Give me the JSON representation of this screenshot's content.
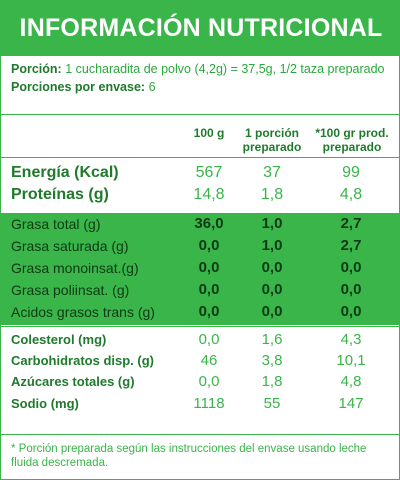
{
  "title": "INFORMACIÓN NUTRICIONAL",
  "serving": {
    "portion_label": "Porción:",
    "portion_value": "1 cucharadita de polvo (4,2g) = 37,5g, 1/2 taza preparado",
    "servings_label": "Porciones por envase:",
    "servings_value": "6"
  },
  "columns": {
    "c1": "100 g",
    "c2_line1": "1 porción",
    "c2_line2": "preparado",
    "c3_line1": "*100 gr prod.",
    "c3_line2": "preparado"
  },
  "energy": {
    "name": "Energía (Kcal)",
    "a": "567",
    "b": "37",
    "c": "99"
  },
  "protein": {
    "name": "Proteínas (g)",
    "a": "14,8",
    "b": "1,8",
    "c": "4,8"
  },
  "fats": [
    {
      "name": "Grasa total (g)",
      "a": "36,0",
      "b": "1,0",
      "c": "2,7"
    },
    {
      "name": "Grasa saturada (g)",
      "a": "0,0",
      "b": "1,0",
      "c": "2,7"
    },
    {
      "name": "Grasa monoinsat.(g)",
      "a": "0,0",
      "b": "0,0",
      "c": "0,0"
    },
    {
      "name": "Grasa poliinsat. (g)",
      "a": "0,0",
      "b": "0,0",
      "c": "0,0"
    },
    {
      "name": "Acidos grasos trans (g)",
      "a": "0,0",
      "b": "0,0",
      "c": "0,0"
    }
  ],
  "others": [
    {
      "name": "Colesterol (mg)",
      "a": "0,0",
      "b": "1,6",
      "c": "4,3"
    },
    {
      "name": "Carbohidratos disp. (g)",
      "a": "46",
      "b": "3,8",
      "c": "10,1"
    },
    {
      "name": "Azúcares totales (g)",
      "a": "0,0",
      "b": "1,8",
      "c": "4,8"
    },
    {
      "name": "Sodio (mg)",
      "a": "1118",
      "b": "55",
      "c": "147"
    }
  ],
  "footnote": "* Porción preparada según las instrucciones del envase usando leche fluida descremada.",
  "colors": {
    "green": "#39b54a",
    "dark_green": "#1f7a2c"
  }
}
